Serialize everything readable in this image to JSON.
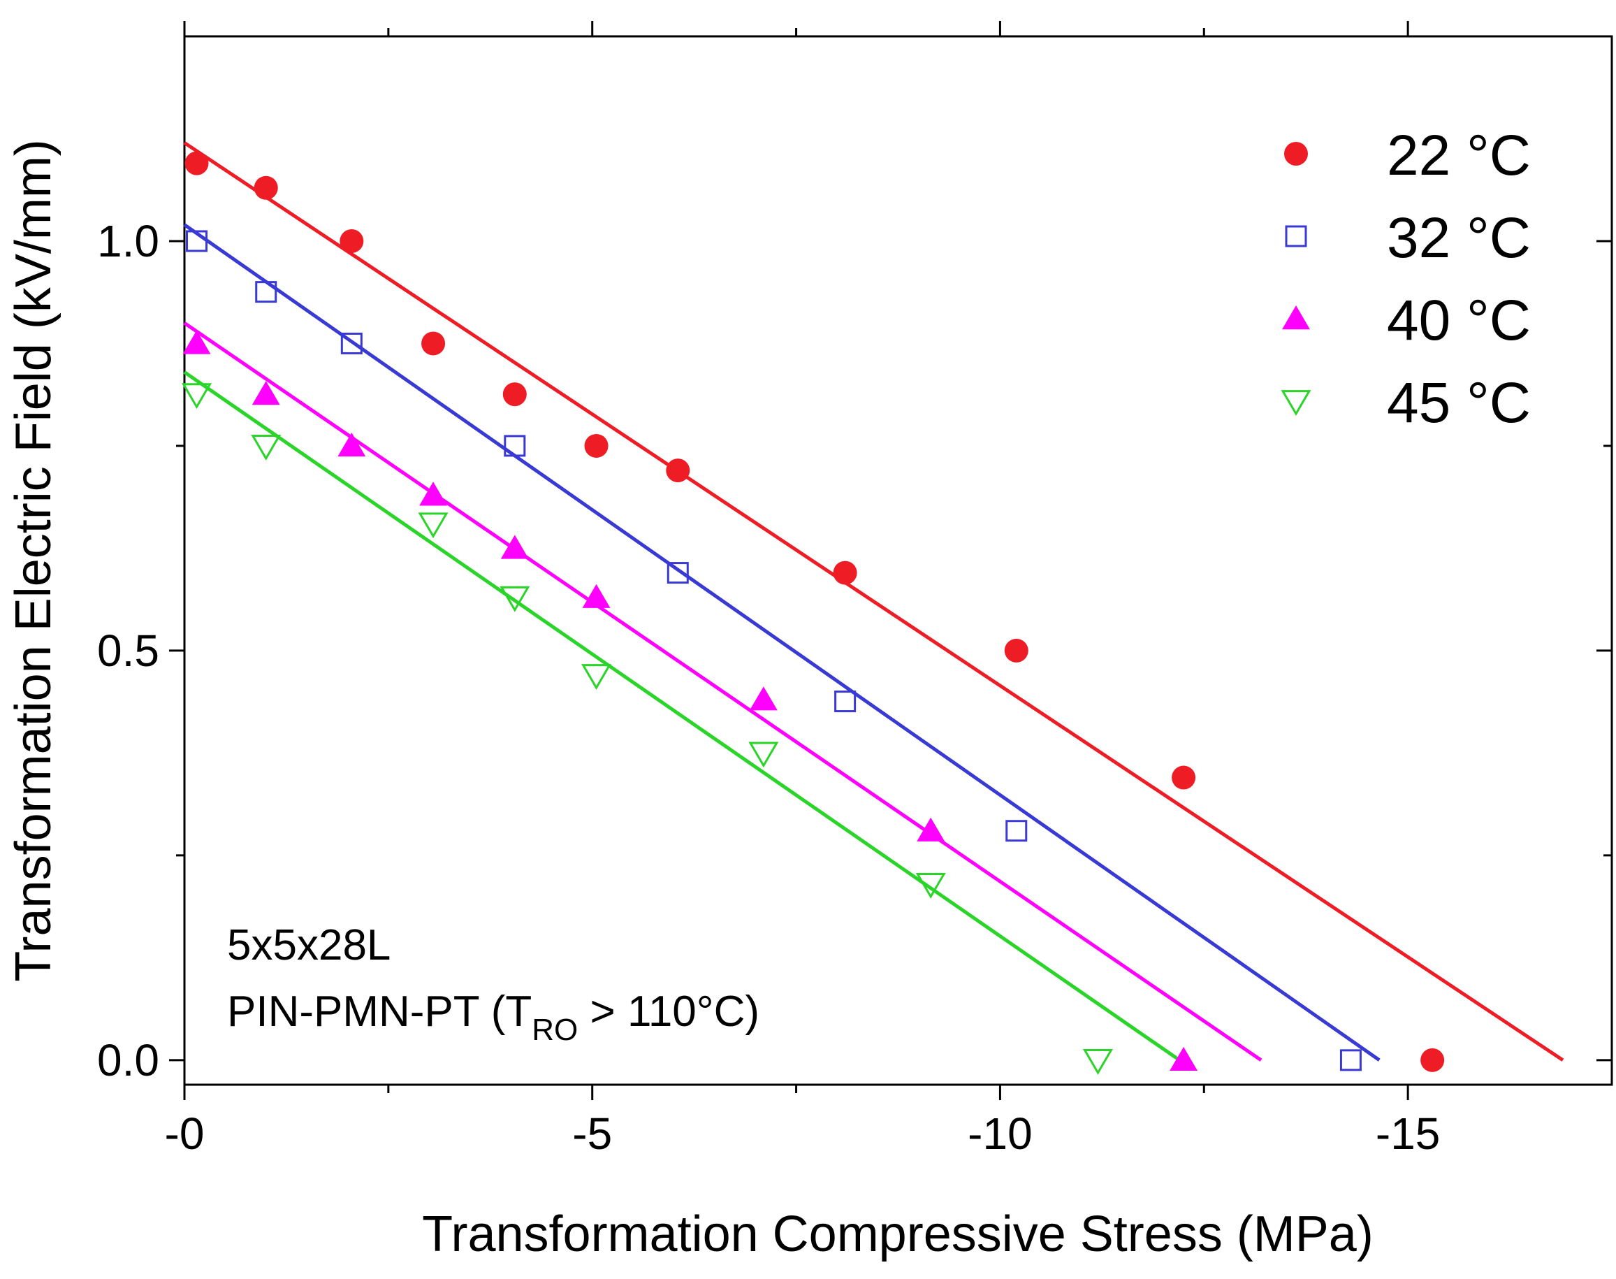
{
  "chart_data": {
    "type": "scatter",
    "xlabel": "Transformation Compressive Stress (MPa)",
    "ylabel": "Transformation Electric Field (kV/mm)",
    "xlim": [
      0.0,
      -17.5
    ],
    "ylim": [
      -0.03,
      1.25
    ],
    "x_ticks": [
      0,
      -5,
      -10,
      -15
    ],
    "x_tick_labels": [
      "-0",
      "-5",
      "-10",
      "-15"
    ],
    "y_ticks": [
      0.0,
      0.5,
      1.0
    ],
    "y_tick_labels": [
      "0.0",
      "0.5",
      "1.0"
    ],
    "grid": false,
    "legend_position": "top-right",
    "annotation": {
      "line1": "5x5x28L",
      "line2_prefix": "PIN-PMN-PT (T",
      "line2_sub": "RO",
      "line2_suffix": " > 110°C)"
    },
    "series": [
      {
        "name": "22 °C",
        "color": "#ee1c25",
        "marker": "filled-circle",
        "x": [
          -0.15,
          -1.0,
          -2.05,
          -3.05,
          -4.05,
          -5.05,
          -6.05,
          -8.1,
          -10.2,
          -12.25,
          -15.3
        ],
        "y": [
          1.095,
          1.065,
          1.0,
          0.875,
          0.813,
          0.75,
          0.72,
          0.595,
          0.5,
          0.345,
          0.0
        ],
        "fit": {
          "x": [
            0.0,
            -16.9
          ],
          "y": [
            1.12,
            0.0
          ]
        }
      },
      {
        "name": "32 °C",
        "color": "#3939d4",
        "marker": "open-square",
        "x": [
          -0.15,
          -1.0,
          -2.05,
          -4.05,
          -6.05,
          -8.1,
          -10.2,
          -14.3
        ],
        "y": [
          1.0,
          0.938,
          0.875,
          0.75,
          0.595,
          0.438,
          0.28,
          0.0
        ],
        "fit": {
          "x": [
            0.0,
            -14.65
          ],
          "y": [
            1.02,
            0.0
          ]
        }
      },
      {
        "name": "40 °C",
        "color": "#ff00ff",
        "marker": "filled-triangle-up",
        "x": [
          -0.15,
          -1.0,
          -2.05,
          -3.05,
          -4.05,
          -5.05,
          -7.1,
          -9.15,
          -12.25
        ],
        "y": [
          0.875,
          0.813,
          0.75,
          0.69,
          0.625,
          0.565,
          0.44,
          0.28,
          0.0
        ],
        "fit": {
          "x": [
            0.0,
            -13.2
          ],
          "y": [
            0.9,
            0.0
          ]
        }
      },
      {
        "name": "45 °C",
        "color": "#2ad428",
        "marker": "open-triangle-down",
        "x": [
          -0.15,
          -1.0,
          -3.05,
          -4.05,
          -5.05,
          -7.1,
          -9.15,
          -11.2
        ],
        "y": [
          0.813,
          0.75,
          0.655,
          0.565,
          0.47,
          0.375,
          0.215,
          0.0
        ],
        "fit": {
          "x": [
            0.0,
            -12.2
          ],
          "y": [
            0.84,
            0.0
          ]
        }
      }
    ]
  }
}
